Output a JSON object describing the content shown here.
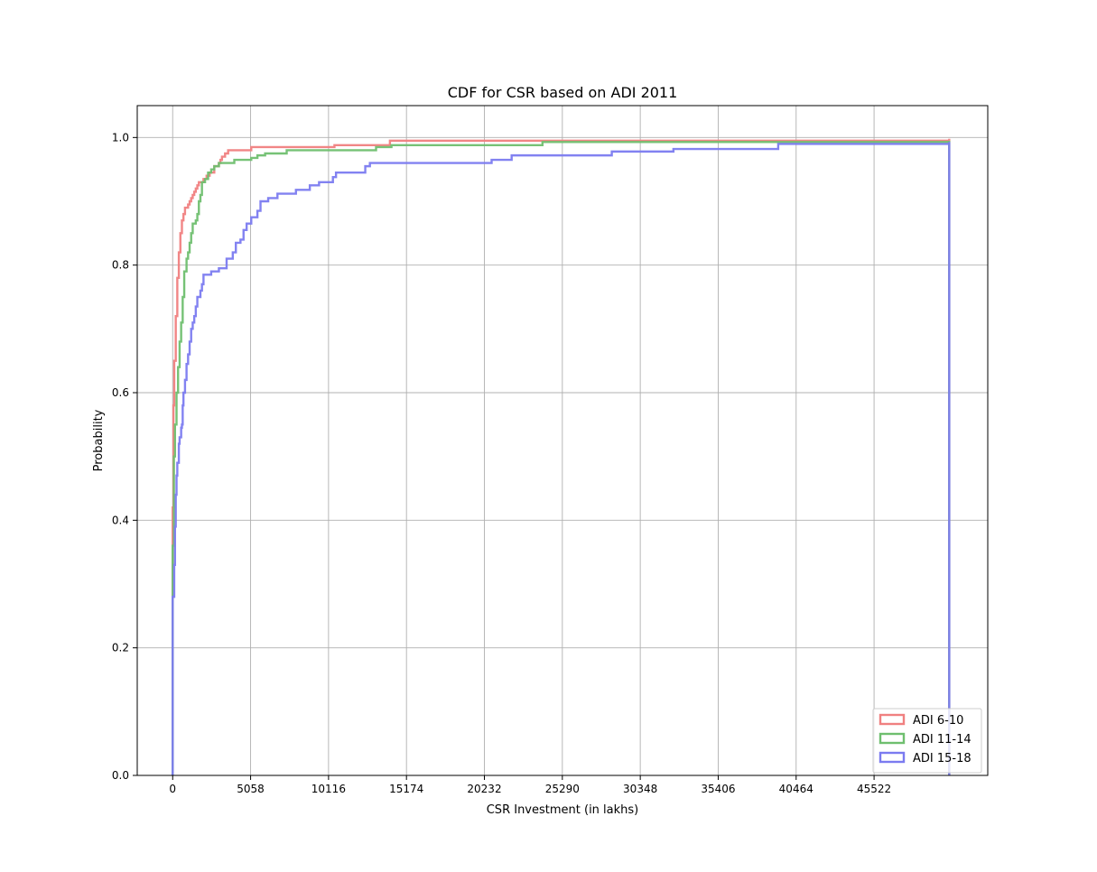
{
  "chart_data": {
    "type": "line",
    "title": "CDF for CSR based on ADI 2011",
    "xlabel": "CSR Investment (in lakhs)",
    "ylabel": "Probability",
    "xlim": [
      -2300,
      52900
    ],
    "ylim": [
      0,
      1.05
    ],
    "xticks": [
      0,
      5058,
      10116,
      15174,
      20232,
      25290,
      30348,
      35406,
      40464,
      45522
    ],
    "yticks": [
      0.0,
      0.2,
      0.4,
      0.6,
      0.8,
      1.0
    ],
    "ytick_labels": [
      "0.0",
      "0.2",
      "0.4",
      "0.6",
      "0.8",
      "1.0"
    ],
    "grid": true,
    "legend": {
      "position": "lower-right"
    },
    "series": [
      {
        "name": "ADI 6-10",
        "color": "#f08080",
        "points": [
          [
            0,
            0.42
          ],
          [
            50,
            0.58
          ],
          [
            100,
            0.65
          ],
          [
            200,
            0.72
          ],
          [
            300,
            0.78
          ],
          [
            400,
            0.82
          ],
          [
            500,
            0.85
          ],
          [
            600,
            0.87
          ],
          [
            700,
            0.88
          ],
          [
            800,
            0.89
          ],
          [
            1000,
            0.895
          ],
          [
            1100,
            0.9
          ],
          [
            1200,
            0.905
          ],
          [
            1300,
            0.91
          ],
          [
            1400,
            0.915
          ],
          [
            1500,
            0.92
          ],
          [
            1600,
            0.925
          ],
          [
            1700,
            0.93
          ],
          [
            2000,
            0.935
          ],
          [
            2200,
            0.94
          ],
          [
            2400,
            0.945
          ],
          [
            2700,
            0.955
          ],
          [
            3000,
            0.96
          ],
          [
            3100,
            0.965
          ],
          [
            3200,
            0.97
          ],
          [
            3400,
            0.975
          ],
          [
            3600,
            0.98
          ],
          [
            5100,
            0.985
          ],
          [
            10500,
            0.988
          ],
          [
            14100,
            0.995
          ],
          [
            50400,
            0.998
          ]
        ]
      },
      {
        "name": "ADI 11-14",
        "color": "#6fbf6f",
        "points": [
          [
            0,
            0.36
          ],
          [
            80,
            0.5
          ],
          [
            150,
            0.55
          ],
          [
            250,
            0.6
          ],
          [
            350,
            0.64
          ],
          [
            450,
            0.68
          ],
          [
            550,
            0.71
          ],
          [
            650,
            0.75
          ],
          [
            750,
            0.79
          ],
          [
            900,
            0.81
          ],
          [
            1000,
            0.82
          ],
          [
            1100,
            0.835
          ],
          [
            1200,
            0.85
          ],
          [
            1300,
            0.865
          ],
          [
            1500,
            0.87
          ],
          [
            1600,
            0.88
          ],
          [
            1700,
            0.9
          ],
          [
            1800,
            0.91
          ],
          [
            1900,
            0.93
          ],
          [
            2100,
            0.935
          ],
          [
            2300,
            0.945
          ],
          [
            2500,
            0.95
          ],
          [
            2700,
            0.955
          ],
          [
            3000,
            0.96
          ],
          [
            4000,
            0.965
          ],
          [
            5100,
            0.968
          ],
          [
            5500,
            0.972
          ],
          [
            6000,
            0.975
          ],
          [
            7400,
            0.98
          ],
          [
            13200,
            0.985
          ],
          [
            14200,
            0.988
          ],
          [
            24000,
            0.993
          ],
          [
            50400,
            0.995
          ]
        ]
      },
      {
        "name": "ADI 15-18",
        "color": "#7b7bf0",
        "points": [
          [
            0,
            0.28
          ],
          [
            100,
            0.33
          ],
          [
            150,
            0.39
          ],
          [
            200,
            0.44
          ],
          [
            250,
            0.47
          ],
          [
            300,
            0.49
          ],
          [
            400,
            0.52
          ],
          [
            450,
            0.53
          ],
          [
            550,
            0.545
          ],
          [
            600,
            0.55
          ],
          [
            650,
            0.58
          ],
          [
            700,
            0.6
          ],
          [
            800,
            0.62
          ],
          [
            900,
            0.645
          ],
          [
            1000,
            0.66
          ],
          [
            1100,
            0.68
          ],
          [
            1200,
            0.7
          ],
          [
            1300,
            0.71
          ],
          [
            1400,
            0.72
          ],
          [
            1500,
            0.735
          ],
          [
            1600,
            0.75
          ],
          [
            1800,
            0.76
          ],
          [
            1900,
            0.77
          ],
          [
            2000,
            0.785
          ],
          [
            2500,
            0.79
          ],
          [
            3000,
            0.795
          ],
          [
            3500,
            0.81
          ],
          [
            3900,
            0.82
          ],
          [
            4100,
            0.835
          ],
          [
            4400,
            0.84
          ],
          [
            4600,
            0.855
          ],
          [
            4800,
            0.865
          ],
          [
            5100,
            0.875
          ],
          [
            5500,
            0.885
          ],
          [
            5700,
            0.9
          ],
          [
            6200,
            0.905
          ],
          [
            6800,
            0.912
          ],
          [
            8000,
            0.918
          ],
          [
            8900,
            0.925
          ],
          [
            9500,
            0.93
          ],
          [
            10400,
            0.938
          ],
          [
            10600,
            0.945
          ],
          [
            12500,
            0.955
          ],
          [
            12800,
            0.96
          ],
          [
            20700,
            0.965
          ],
          [
            22000,
            0.972
          ],
          [
            28500,
            0.978
          ],
          [
            32500,
            0.982
          ],
          [
            39300,
            0.99
          ],
          [
            50400,
            0.993
          ]
        ]
      }
    ]
  }
}
